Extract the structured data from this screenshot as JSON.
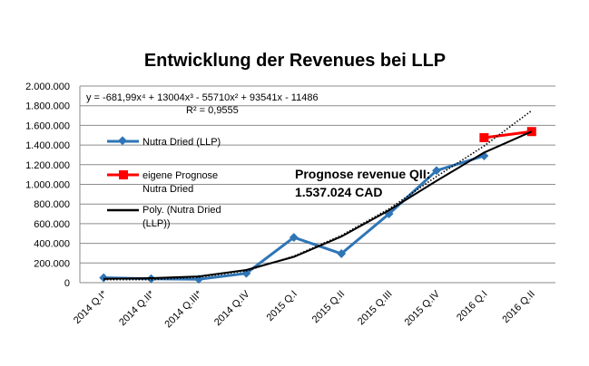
{
  "chart_data": {
    "type": "line",
    "title": "Entwicklung der Revenues bei LLP",
    "categories": [
      "2014 Q.I*",
      "2014 Q.II*",
      "2014 Q.III*",
      "2014 Q.IV",
      "2015 Q.I",
      "2015 Q.II",
      "2015 Q.III",
      "2015 Q.IV",
      "2016 Q.I",
      "2016 Q.II"
    ],
    "ylim": [
      0,
      2000000
    ],
    "yticks": [
      "0",
      "200.000",
      "400.000",
      "600.000",
      "800.000",
      "1.000.000",
      "1.200.000",
      "1.400.000",
      "1.600.000",
      "1.800.000",
      "2.000.000"
    ],
    "grid": true,
    "legend": "left",
    "series": [
      {
        "name": "Nutra Dried (LLP)",
        "color": "#2E75B6",
        "marker": "diamond",
        "values": [
          50000,
          40000,
          35000,
          95000,
          460000,
          295000,
          700000,
          1140000,
          1290000,
          null
        ]
      },
      {
        "name": "eigene Prognose Nutra Dried",
        "color": "#FF0000",
        "marker": "square",
        "values": [
          null,
          null,
          null,
          null,
          null,
          null,
          null,
          null,
          1475000,
          1537024
        ]
      },
      {
        "name": "Poly. (Nutra Dried (LLP))",
        "color": "#000000",
        "style": "solid",
        "values": [
          38667,
          45876,
          63614,
          128985,
          262725,
          469205,
          736426,
          1036019,
          1323154,
          1537024
        ]
      },
      {
        "color": "#000000",
        "style": "dotted",
        "values": [
          30000,
          30000,
          55000,
          120000,
          270000,
          480000,
          750000,
          1080000,
          1390000,
          1750000
        ]
      }
    ],
    "annotations": {
      "equation": "y = -681,99x⁴ + 13004x³ - 55710x² + 93541x - 11486",
      "r_squared": "R² = 0,9555",
      "prognose_line1": "Prognose revenue QII:",
      "prognose_line2": "1.537.024 CAD"
    }
  }
}
